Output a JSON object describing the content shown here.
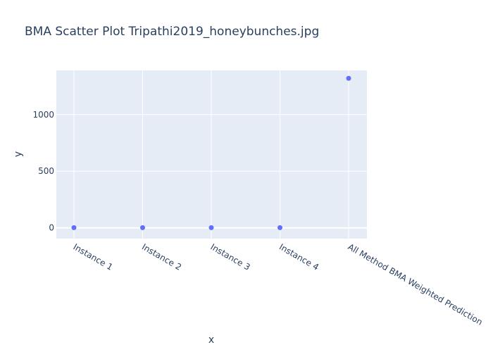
{
  "chart_data": {
    "type": "scatter",
    "title": "BMA Scatter Plot Tripathi2019_honeybunches.jpg",
    "xlabel": "x",
    "ylabel": "y",
    "categories": [
      "Instance 1",
      "Instance 2",
      "Instance 3",
      "Instance 4",
      "All Method BMA Weighted Prediction"
    ],
    "values": [
      2,
      2,
      2,
      2,
      1320
    ],
    "ylim": [
      -95,
      1390
    ],
    "yticks": [
      0,
      500,
      1000
    ],
    "grid": true,
    "colors": {
      "plot_bg": "#e5ecf6",
      "grid": "#ffffff",
      "marker": "#636efa",
      "text": "#2a3f5f"
    }
  }
}
